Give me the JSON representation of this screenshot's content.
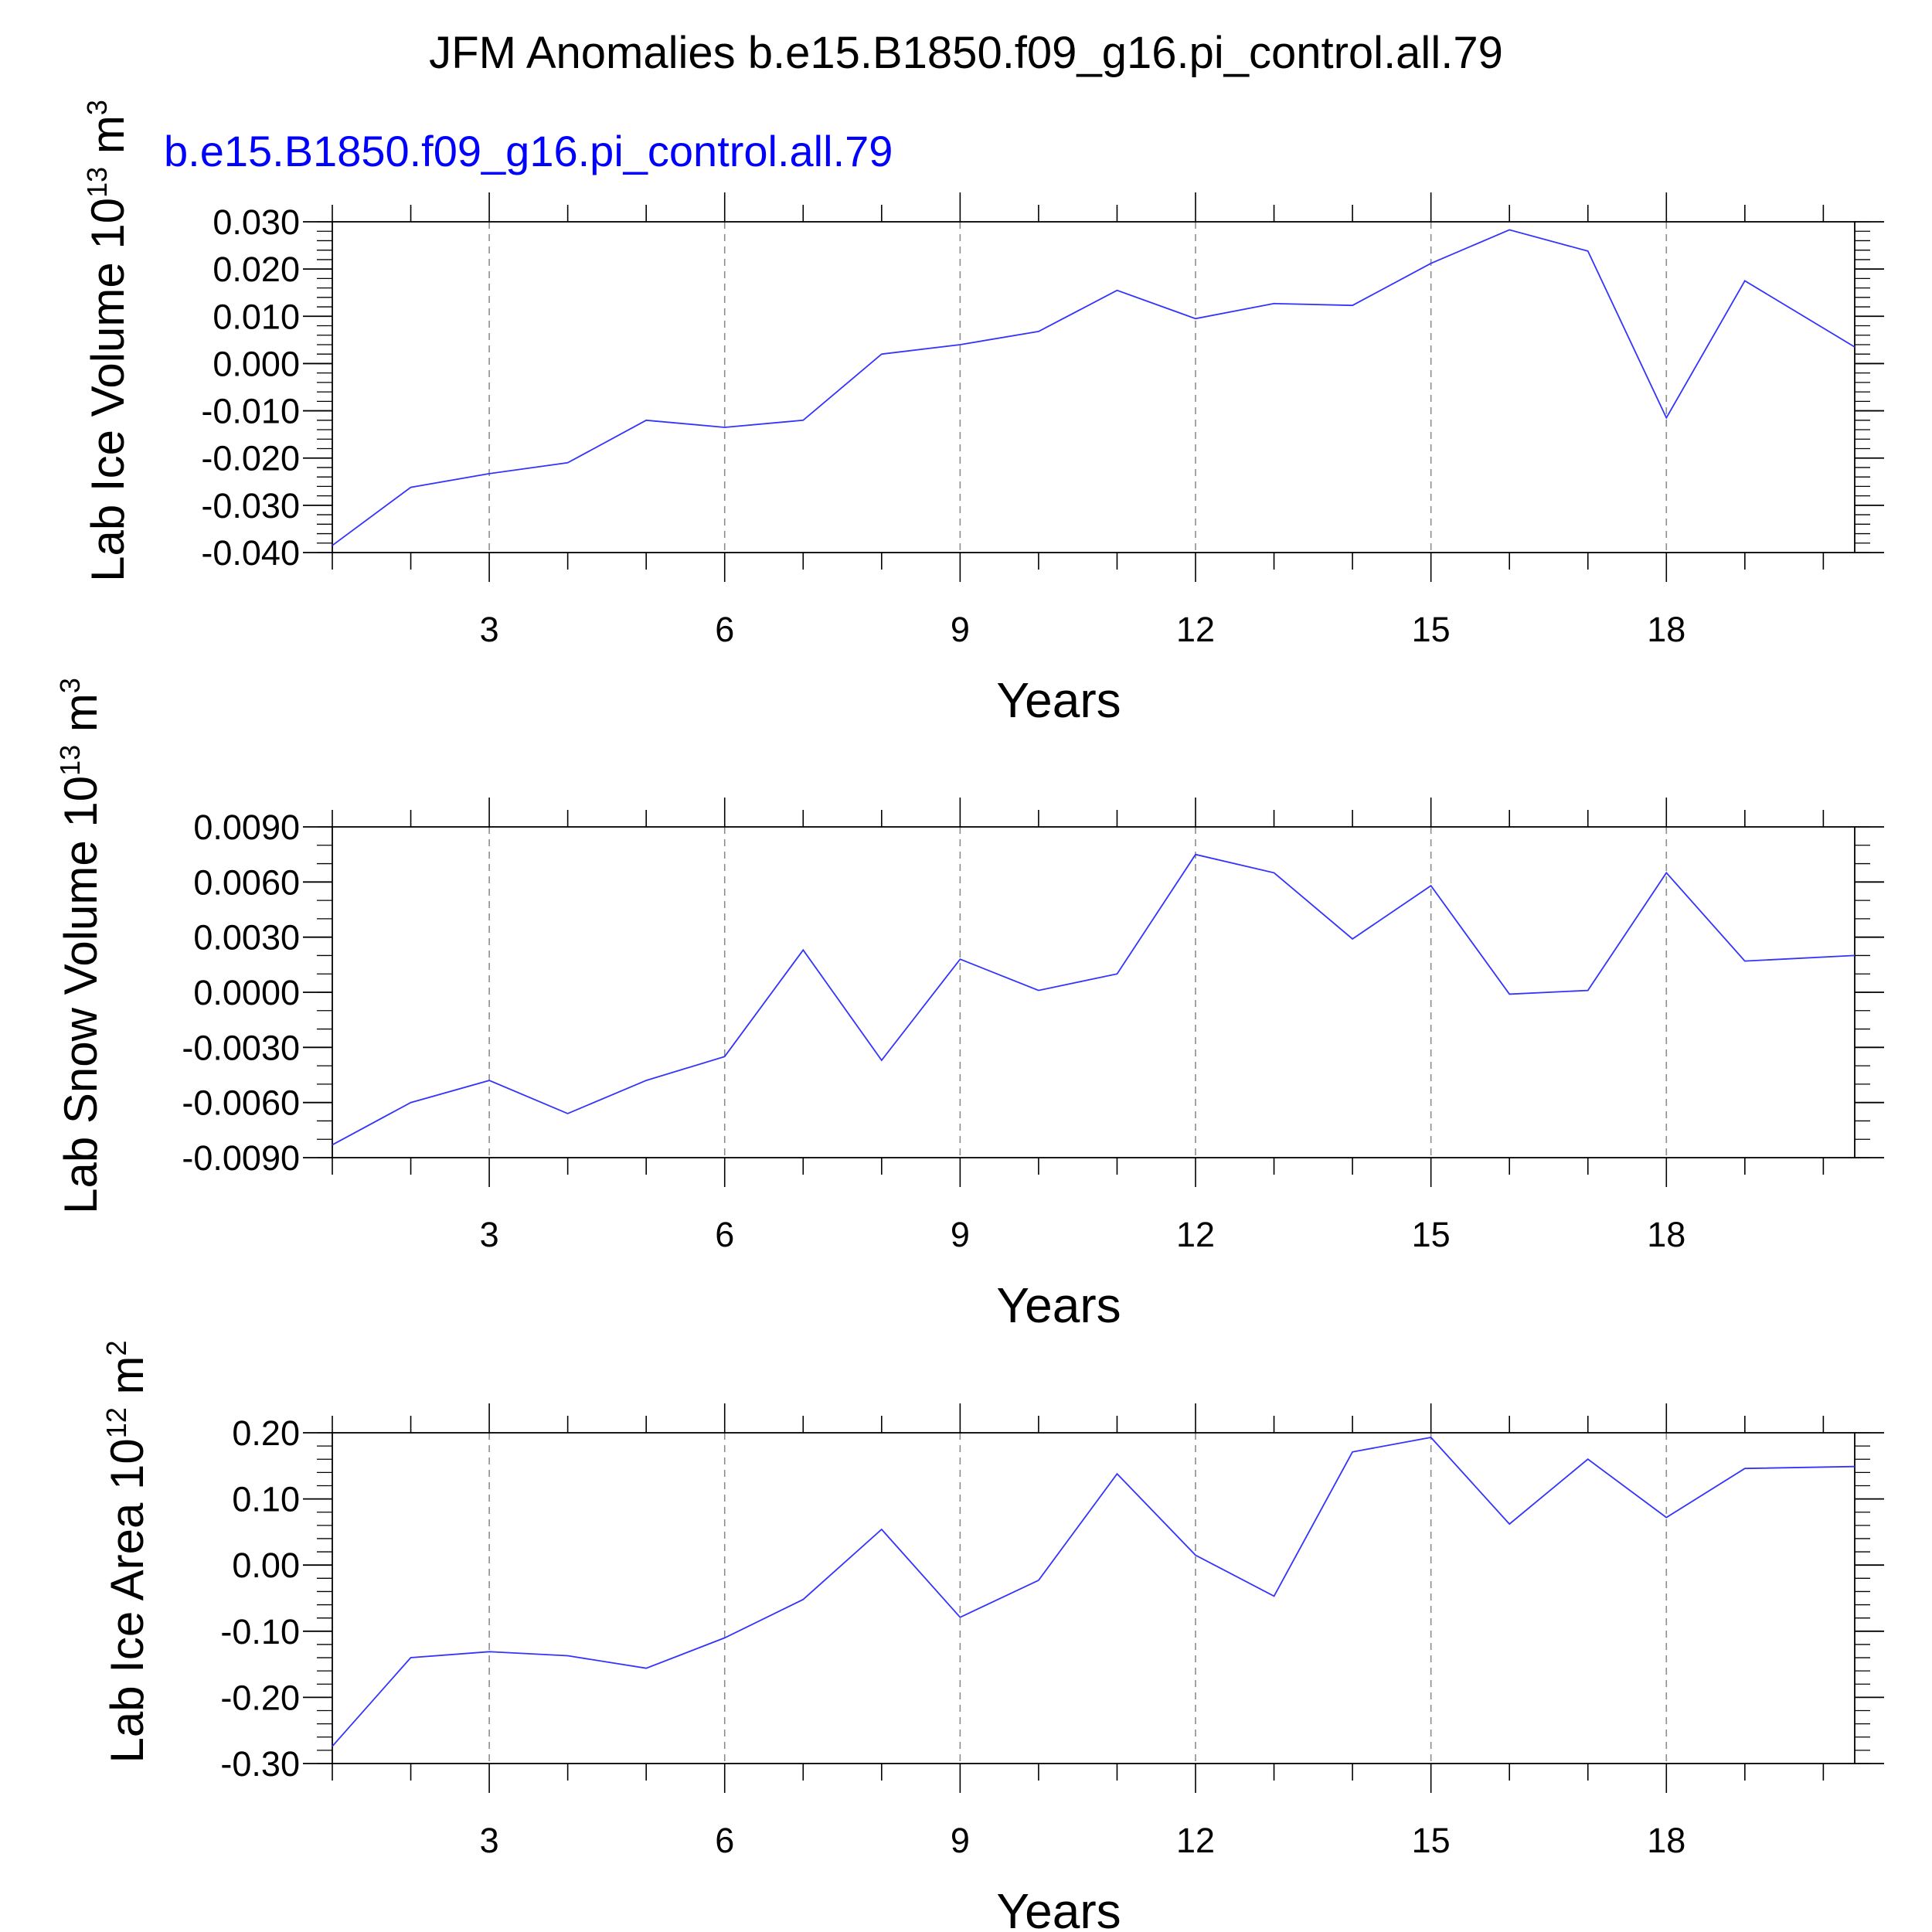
{
  "title": "JFM Anomalies b.e15.B1850.f09_g16.pi_control.all.79",
  "subtitle": "b.e15.B1850.f09_g16.pi_control.all.79",
  "colors": {
    "line": "#3333ff",
    "subtitle": "#0000ff",
    "axis": "#000000",
    "grid": "#8c8c8c"
  },
  "chart_data": [
    {
      "type": "line",
      "ylabel": "Lab Ice Volume 10",
      "ylabel_exp": "13",
      "ylabel_unit": " m",
      "ylabel_unit_exp": "3",
      "xlabel": "Years",
      "xlim": [
        1,
        20.4
      ],
      "ylim": [
        -0.04,
        0.03
      ],
      "x_ticks": [
        3,
        6,
        9,
        12,
        15,
        18
      ],
      "x_tick_labels": [
        "3",
        "6",
        "9",
        "12",
        "15",
        "18"
      ],
      "y_ticks": [
        -0.04,
        -0.03,
        -0.02,
        -0.01,
        0.0,
        0.01,
        0.02,
        0.03
      ],
      "y_tick_labels": [
        "-0.040",
        "-0.030",
        "-0.020",
        "-0.010",
        "0.000",
        "0.010",
        "0.020",
        "0.030"
      ],
      "y_minor_step": 0.002,
      "x_minor_step": 1,
      "grid": "vertical-dashed-at-major-x",
      "series": [
        {
          "x": [
            1,
            2,
            3,
            4,
            5,
            6,
            7,
            8,
            9,
            10,
            11,
            12,
            13,
            14,
            15,
            16,
            17,
            18,
            19,
            20.4
          ],
          "values": [
            -0.0385,
            -0.0262,
            -0.0233,
            -0.021,
            -0.012,
            -0.0135,
            -0.012,
            0.002,
            0.004,
            0.0068,
            0.0155,
            0.0095,
            0.0127,
            0.0123,
            0.0212,
            0.0283,
            0.0238,
            -0.0115,
            0.0175,
            0.0035
          ]
        }
      ]
    },
    {
      "type": "line",
      "ylabel": "Lab Snow Volume 10",
      "ylabel_exp": "13",
      "ylabel_unit": " m",
      "ylabel_unit_exp": "3",
      "xlabel": "Years",
      "xlim": [
        1,
        20.4
      ],
      "ylim": [
        -0.009,
        0.009
      ],
      "x_ticks": [
        3,
        6,
        9,
        12,
        15,
        18
      ],
      "x_tick_labels": [
        "3",
        "6",
        "9",
        "12",
        "15",
        "18"
      ],
      "y_ticks": [
        -0.009,
        -0.006,
        -0.003,
        0.0,
        0.003,
        0.006,
        0.009
      ],
      "y_tick_labels": [
        "-0.0090",
        "-0.0060",
        "-0.0030",
        "0.0000",
        "0.0030",
        "0.0060",
        "0.0090"
      ],
      "y_minor_step": 0.001,
      "x_minor_step": 1,
      "grid": "vertical-dashed-at-major-x",
      "series": [
        {
          "x": [
            1,
            2,
            3,
            4,
            5,
            6,
            7,
            8,
            9,
            10,
            11,
            12,
            13,
            14,
            15,
            16,
            17,
            18,
            19,
            20.4
          ],
          "values": [
            -0.0083,
            -0.006,
            -0.0048,
            -0.0066,
            -0.0048,
            -0.0035,
            0.0023,
            -0.0037,
            0.0018,
            0.0001,
            0.001,
            0.0075,
            0.0065,
            0.0029,
            0.0058,
            -0.0001,
            0.0001,
            0.0065,
            0.0017,
            0.002
          ]
        }
      ]
    },
    {
      "type": "line",
      "ylabel": "Lab Ice Area 10",
      "ylabel_exp": "12",
      "ylabel_unit": " m",
      "ylabel_unit_exp": "2",
      "xlabel": "Years",
      "xlim": [
        1,
        20.4
      ],
      "ylim": [
        -0.3,
        0.2
      ],
      "x_ticks": [
        3,
        6,
        9,
        12,
        15,
        18
      ],
      "x_tick_labels": [
        "3",
        "6",
        "9",
        "12",
        "15",
        "18"
      ],
      "y_ticks": [
        -0.3,
        -0.2,
        -0.1,
        0.0,
        0.1,
        0.2
      ],
      "y_tick_labels": [
        "-0.30",
        "-0.20",
        "-0.10",
        "0.00",
        "0.10",
        "0.20"
      ],
      "y_minor_step": 0.02,
      "x_minor_step": 1,
      "grid": "vertical-dashed-at-major-x",
      "series": [
        {
          "x": [
            1,
            2,
            3,
            4,
            5,
            6,
            7,
            8,
            9,
            10,
            11,
            12,
            13,
            14,
            15,
            16,
            17,
            18,
            19,
            20.4
          ],
          "values": [
            -0.274,
            -0.14,
            -0.131,
            -0.137,
            -0.156,
            -0.11,
            -0.052,
            0.054,
            -0.079,
            -0.023,
            0.138,
            0.015,
            -0.047,
            0.171,
            0.193,
            0.062,
            0.16,
            0.072,
            0.146,
            0.149
          ]
        }
      ]
    }
  ]
}
